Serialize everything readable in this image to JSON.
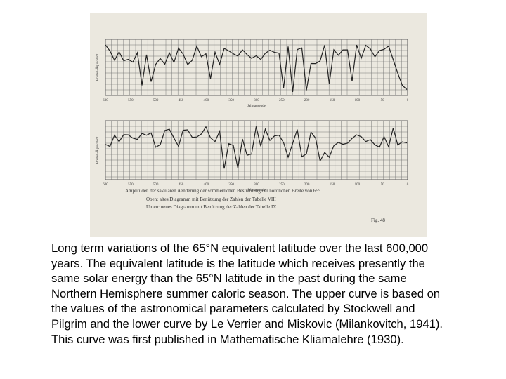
{
  "figure": {
    "xticks": [
      600,
      550,
      500,
      450,
      400,
      350,
      300,
      250,
      200,
      150,
      100,
      50,
      0
    ],
    "x_label": "Jahrtausende",
    "y_label": "Breiten-Äquivalent",
    "legend_lines": [
      "Amplituden der säkularen Aenderung der sommerlichen Bestrahlung der nördlichen Breite von 65°",
      "Oben: altes Diagramm mit Benützung der Zahlen der Tabelle VIII",
      "Unten: neues Diagramm mit Benützung der Zahlen der Tabelle IX"
    ],
    "number": "Fig. 48"
  },
  "caption": [
    "Long term variations of the 65°N equivalent latitude over the last 600,000",
    "years. The equivalent latitude is the latitude which receives presently the",
    "same solar energy than the 65°N latitude in the past during the same",
    "Northern Hemisphere summer caloric season. The upper curve is based on",
    "the values of the astronomical parameters calculated by Stockwell and",
    "Pilgrim and the lower curve by Le Verrier and Miskovic (Milankovitch, 1941).",
    "This curve was first published in Mathematische Kliamalehre (1930)."
  ]
}
